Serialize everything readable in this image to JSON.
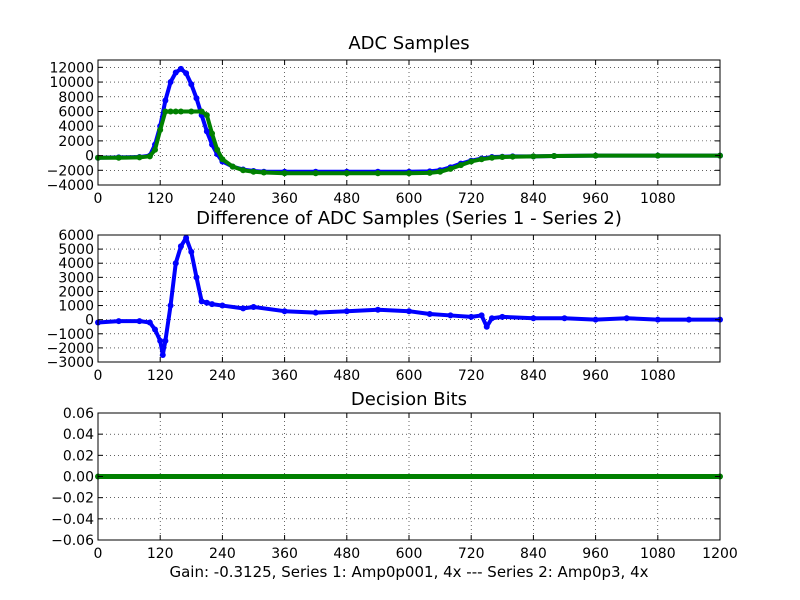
{
  "caption": "Gain: -0.3125, Series 1: Amp0p001, 4x --- Series 2: Amp0p3, 4x",
  "chart_data": [
    {
      "type": "scatter",
      "title": "ADC Samples",
      "xlim": [
        0,
        1200
      ],
      "ylim": [
        -4000,
        13000
      ],
      "xticks": [
        "0",
        "120",
        "240",
        "360",
        "480",
        "600",
        "720",
        "840",
        "960",
        "1080"
      ],
      "yticks": [
        "−4000",
        "−2000",
        "0",
        "2000",
        "4000",
        "6000",
        "8000",
        "10000",
        "12000"
      ],
      "grid": true,
      "colors": [
        "#0000ff",
        "#008000"
      ],
      "series": [
        {
          "x": [
            0,
            40,
            80,
            100,
            110,
            120,
            130,
            140,
            150,
            160,
            170,
            180,
            190,
            200,
            210,
            220,
            230,
            240,
            260,
            280,
            300,
            320,
            360,
            420,
            480,
            540,
            600,
            640,
            660,
            680,
            700,
            720,
            740,
            760,
            780,
            800,
            840,
            880,
            960,
            1080,
            1200
          ],
          "values": [
            -300,
            -250,
            -200,
            0,
            1500,
            4000,
            7500,
            10000,
            11300,
            11800,
            11200,
            9700,
            7800,
            5500,
            3300,
            1500,
            200,
            -800,
            -1500,
            -1900,
            -2100,
            -2200,
            -2200,
            -2200,
            -2200,
            -2200,
            -2200,
            -2150,
            -2000,
            -1600,
            -1100,
            -700,
            -400,
            -200,
            -150,
            -100,
            -100,
            -50,
            0,
            0,
            0
          ]
        },
        {
          "x": [
            0,
            40,
            80,
            100,
            110,
            120,
            130,
            140,
            150,
            160,
            180,
            200,
            210,
            220,
            230,
            240,
            260,
            280,
            300,
            320,
            360,
            420,
            480,
            540,
            600,
            640,
            660,
            680,
            700,
            720,
            740,
            760,
            780,
            800,
            840,
            880,
            960,
            1080,
            1200
          ],
          "values": [
            -300,
            -300,
            -250,
            -100,
            800,
            3500,
            6000,
            6000,
            6000,
            6000,
            6000,
            6000,
            5500,
            3000,
            800,
            -500,
            -1500,
            -2000,
            -2200,
            -2300,
            -2400,
            -2400,
            -2400,
            -2400,
            -2400,
            -2350,
            -2200,
            -1800,
            -1300,
            -800,
            -500,
            -300,
            -200,
            -150,
            -100,
            -50,
            0,
            0,
            0
          ]
        }
      ]
    },
    {
      "type": "scatter",
      "title": "Difference of ADC Samples (Series 1 - Series 2)",
      "xlim": [
        0,
        1200
      ],
      "ylim": [
        -3000,
        6000
      ],
      "xticks": [
        "0",
        "120",
        "240",
        "360",
        "480",
        "600",
        "720",
        "840",
        "960",
        "1080"
      ],
      "yticks": [
        "−3000",
        "−2000",
        "−1000",
        "0",
        "1000",
        "2000",
        "3000",
        "4000",
        "5000",
        "6000"
      ],
      "grid": true,
      "colors": [
        "#0000ff"
      ],
      "series": [
        {
          "x": [
            0,
            40,
            80,
            100,
            110,
            120,
            125,
            130,
            140,
            150,
            160,
            170,
            180,
            190,
            200,
            210,
            220,
            240,
            280,
            300,
            360,
            420,
            480,
            540,
            600,
            640,
            680,
            720,
            740,
            750,
            760,
            780,
            840,
            900,
            960,
            1020,
            1080,
            1140,
            1200
          ],
          "values": [
            -200,
            -100,
            -100,
            -200,
            -700,
            -1500,
            -2500,
            -1500,
            1000,
            4000,
            5200,
            5800,
            4800,
            3000,
            1300,
            1200,
            1100,
            1000,
            800,
            900,
            600,
            500,
            600,
            700,
            600,
            400,
            300,
            200,
            300,
            -500,
            100,
            200,
            100,
            100,
            0,
            100,
            0,
            0,
            0
          ]
        }
      ]
    },
    {
      "type": "scatter",
      "title": "Decision Bits",
      "xlim": [
        0,
        1200
      ],
      "ylim": [
        -0.06,
        0.06
      ],
      "xticks": [
        "0",
        "120",
        "240",
        "360",
        "480",
        "600",
        "720",
        "840",
        "960",
        "1080",
        "1200"
      ],
      "yticks": [
        "−0.06",
        "−0.04",
        "−0.02",
        "0.00",
        "0.02",
        "0.04",
        "0.06"
      ],
      "grid": true,
      "colors": [
        "#008000"
      ],
      "series": [
        {
          "x": [
            0,
            1200
          ],
          "values": [
            0,
            0
          ]
        }
      ]
    }
  ]
}
